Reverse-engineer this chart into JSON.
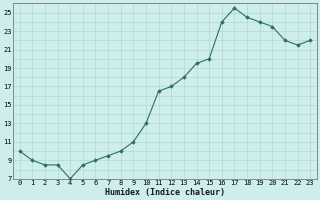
{
  "x": [
    0,
    1,
    2,
    3,
    4,
    5,
    6,
    7,
    8,
    9,
    10,
    11,
    12,
    13,
    14,
    15,
    16,
    17,
    18,
    19,
    20,
    21,
    22,
    23
  ],
  "y": [
    10,
    9,
    8.5,
    8.5,
    7,
    8.5,
    9,
    9.5,
    10,
    11,
    13,
    16.5,
    17,
    18,
    19.5,
    20,
    24,
    25.5,
    24.5,
    24,
    23.5,
    22,
    21.5,
    22
  ],
  "line_color": "#2d6e65",
  "marker_color": "#2d6e65",
  "bg_color": "#ceeeed",
  "grid_color": "#aad4d0",
  "xlabel": "Humidex (Indice chaleur)",
  "ylim": [
    7,
    26
  ],
  "yticks": [
    7,
    9,
    11,
    13,
    15,
    17,
    19,
    21,
    23,
    25
  ],
  "xlim": [
    -0.5,
    23.5
  ],
  "xticks": [
    0,
    1,
    2,
    3,
    4,
    5,
    6,
    7,
    8,
    9,
    10,
    11,
    12,
    13,
    14,
    15,
    16,
    17,
    18,
    19,
    20,
    21,
    22,
    23
  ],
  "tick_fontsize": 5.0,
  "xlabel_fontsize": 6.0
}
